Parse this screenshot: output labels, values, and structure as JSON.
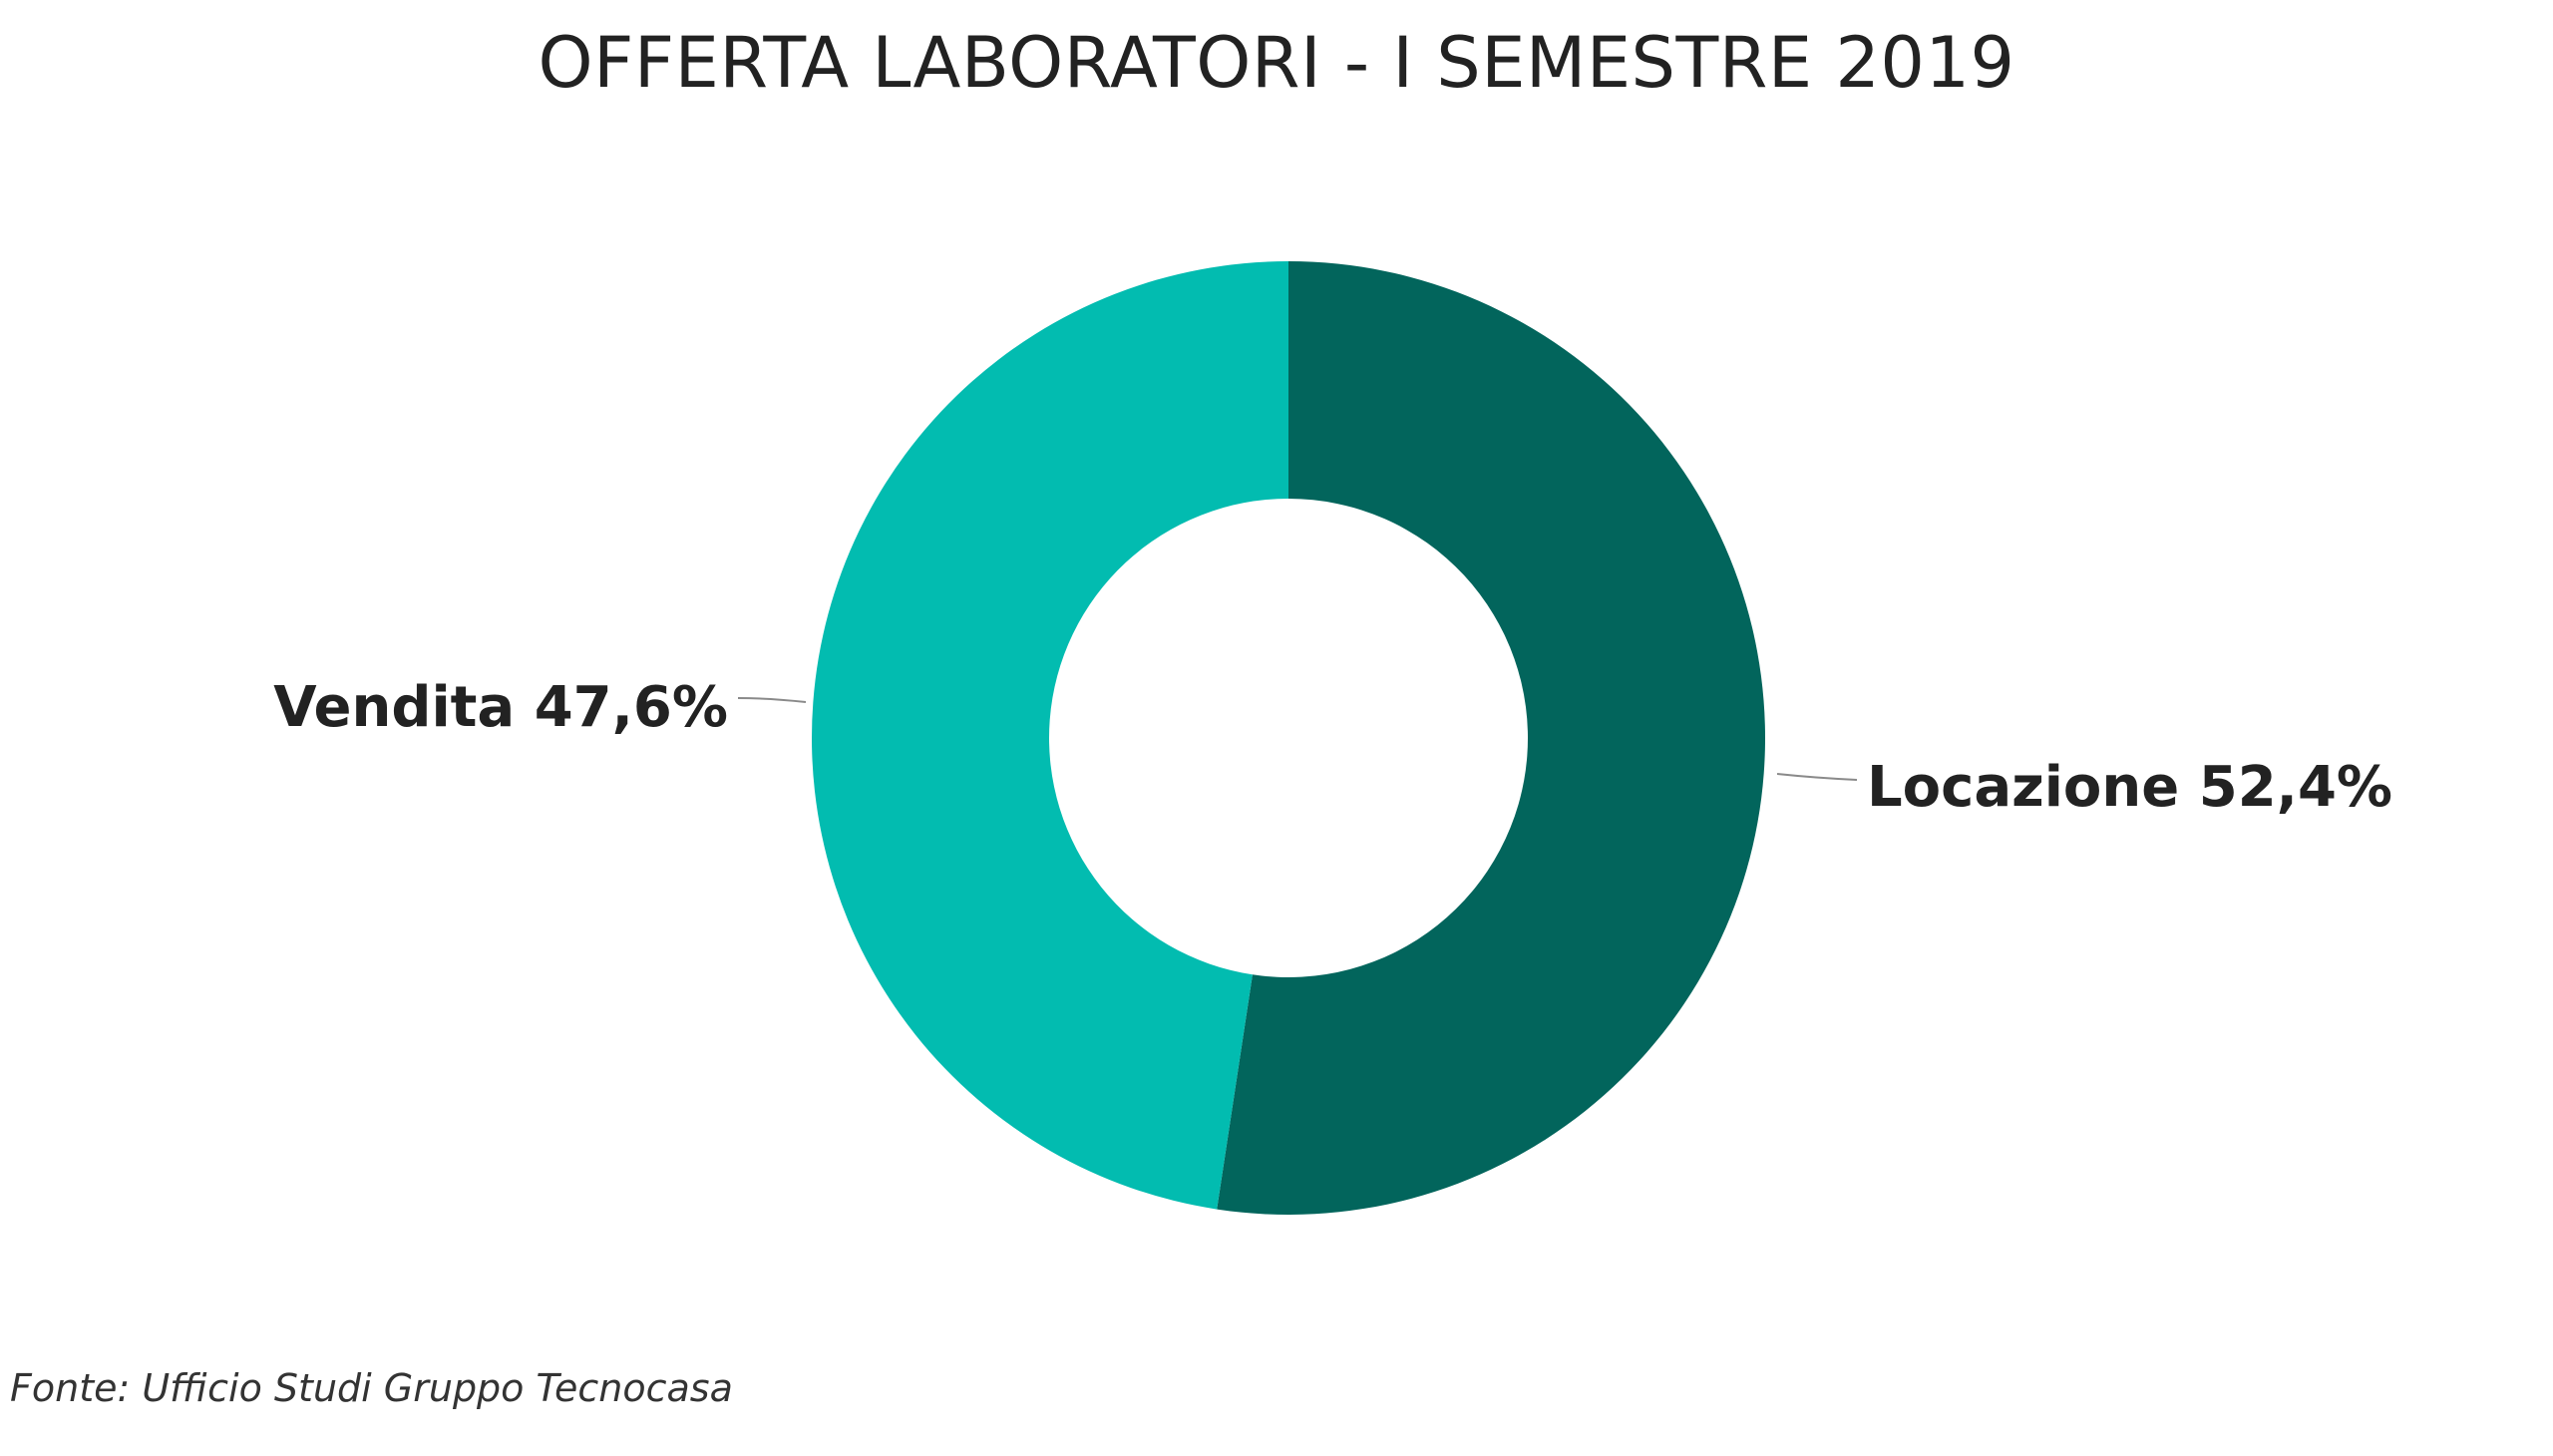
{
  "chart_data": {
    "type": "pie",
    "donut": true,
    "title": "OFFERTA LABORATORI - I SEMESTRE 2019",
    "slices": [
      {
        "label": "Locazione",
        "value": 52.4,
        "display": "Locazione 52,4%",
        "color": "#02655C"
      },
      {
        "label": "Vendita",
        "value": 47.6,
        "display": "Vendita 47,6%",
        "color": "#02BCB0"
      }
    ],
    "legend": "none"
  },
  "source": "Fonte: Ufficio Studi Gruppo Tecnocasa"
}
